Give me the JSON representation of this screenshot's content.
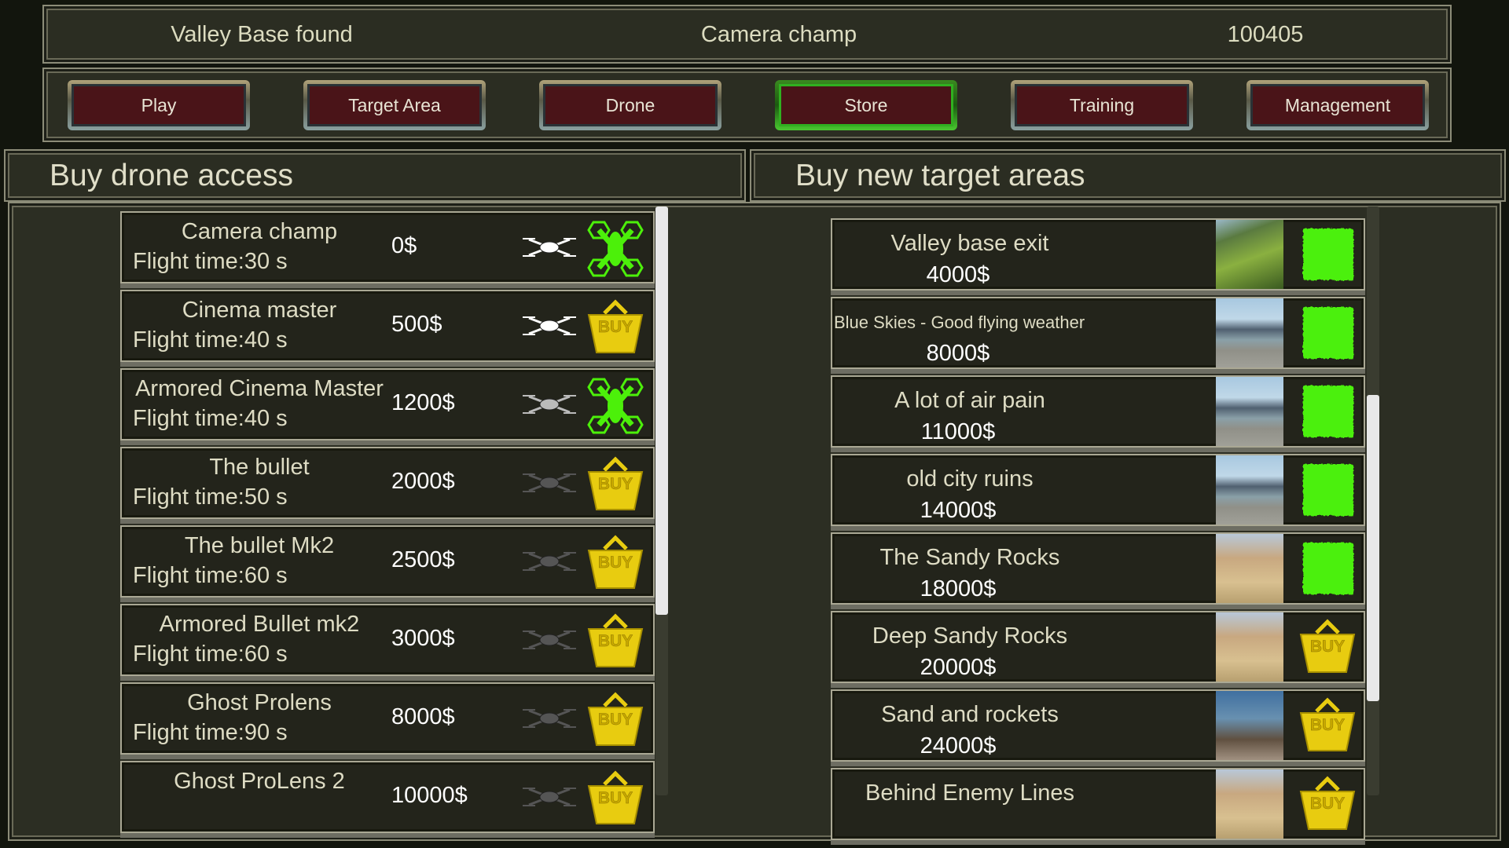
{
  "topbar": {
    "status": "Valley Base found",
    "drone": "Camera champ",
    "money": "100405"
  },
  "nav": [
    {
      "label": "Play",
      "active": false
    },
    {
      "label": "Target Area",
      "active": false
    },
    {
      "label": "Drone",
      "active": false
    },
    {
      "label": "Store",
      "active": true
    },
    {
      "label": "Training",
      "active": false
    },
    {
      "label": "Management",
      "active": false
    }
  ],
  "drones": {
    "title": "Buy drone access",
    "items": [
      {
        "name": "Camera champ",
        "flight": "Flight time:30 s",
        "price": "0$",
        "owned": true,
        "style": "white"
      },
      {
        "name": "Cinema master",
        "flight": "Flight time:40 s",
        "price": "500$",
        "owned": false,
        "style": "white"
      },
      {
        "name": "Armored Cinema Master",
        "flight": "Flight time:40 s",
        "price": "1200$",
        "owned": true,
        "style": "armored"
      },
      {
        "name": "The bullet",
        "flight": "Flight time:50 s",
        "price": "2000$",
        "owned": false,
        "style": "dark"
      },
      {
        "name": "The bullet Mk2",
        "flight": "Flight time:60 s",
        "price": "2500$",
        "owned": false,
        "style": "dark"
      },
      {
        "name": "Armored Bullet mk2",
        "flight": "Flight time:60 s",
        "price": "3000$",
        "owned": false,
        "style": "dark"
      },
      {
        "name": "Ghost Prolens",
        "flight": "Flight time:90 s",
        "price": "8000$",
        "owned": false,
        "style": "dark"
      },
      {
        "name": "Ghost ProLens 2",
        "flight": "",
        "price": "10000$",
        "owned": false,
        "style": "dark"
      }
    ]
  },
  "areas": {
    "title": "Buy new target areas",
    "items": [
      {
        "name": "Valley base exit",
        "price": "4000$",
        "owned": true,
        "thumb": "valley"
      },
      {
        "name": "Blue Skies - Good flying weather",
        "price": "8000$",
        "owned": true,
        "thumb": "city"
      },
      {
        "name": "A lot of air pain",
        "price": "11000$",
        "owned": true,
        "thumb": "city"
      },
      {
        "name": "old city ruins",
        "price": "14000$",
        "owned": true,
        "thumb": "city"
      },
      {
        "name": "The Sandy Rocks",
        "price": "18000$",
        "owned": true,
        "thumb": "sand"
      },
      {
        "name": "Deep Sandy Rocks",
        "price": "20000$",
        "owned": false,
        "thumb": "sand"
      },
      {
        "name": "Sand and rockets",
        "price": "24000$",
        "owned": false,
        "thumb": "rockets"
      },
      {
        "name": "Behind Enemy Lines",
        "price": "",
        "owned": false,
        "thumb": "sand"
      }
    ]
  },
  "buy_label": "BUY",
  "colors": {
    "owned": "#4cf00a",
    "buy": "#e8cc10",
    "button": "#4a1418",
    "active_button": "#30b020"
  }
}
